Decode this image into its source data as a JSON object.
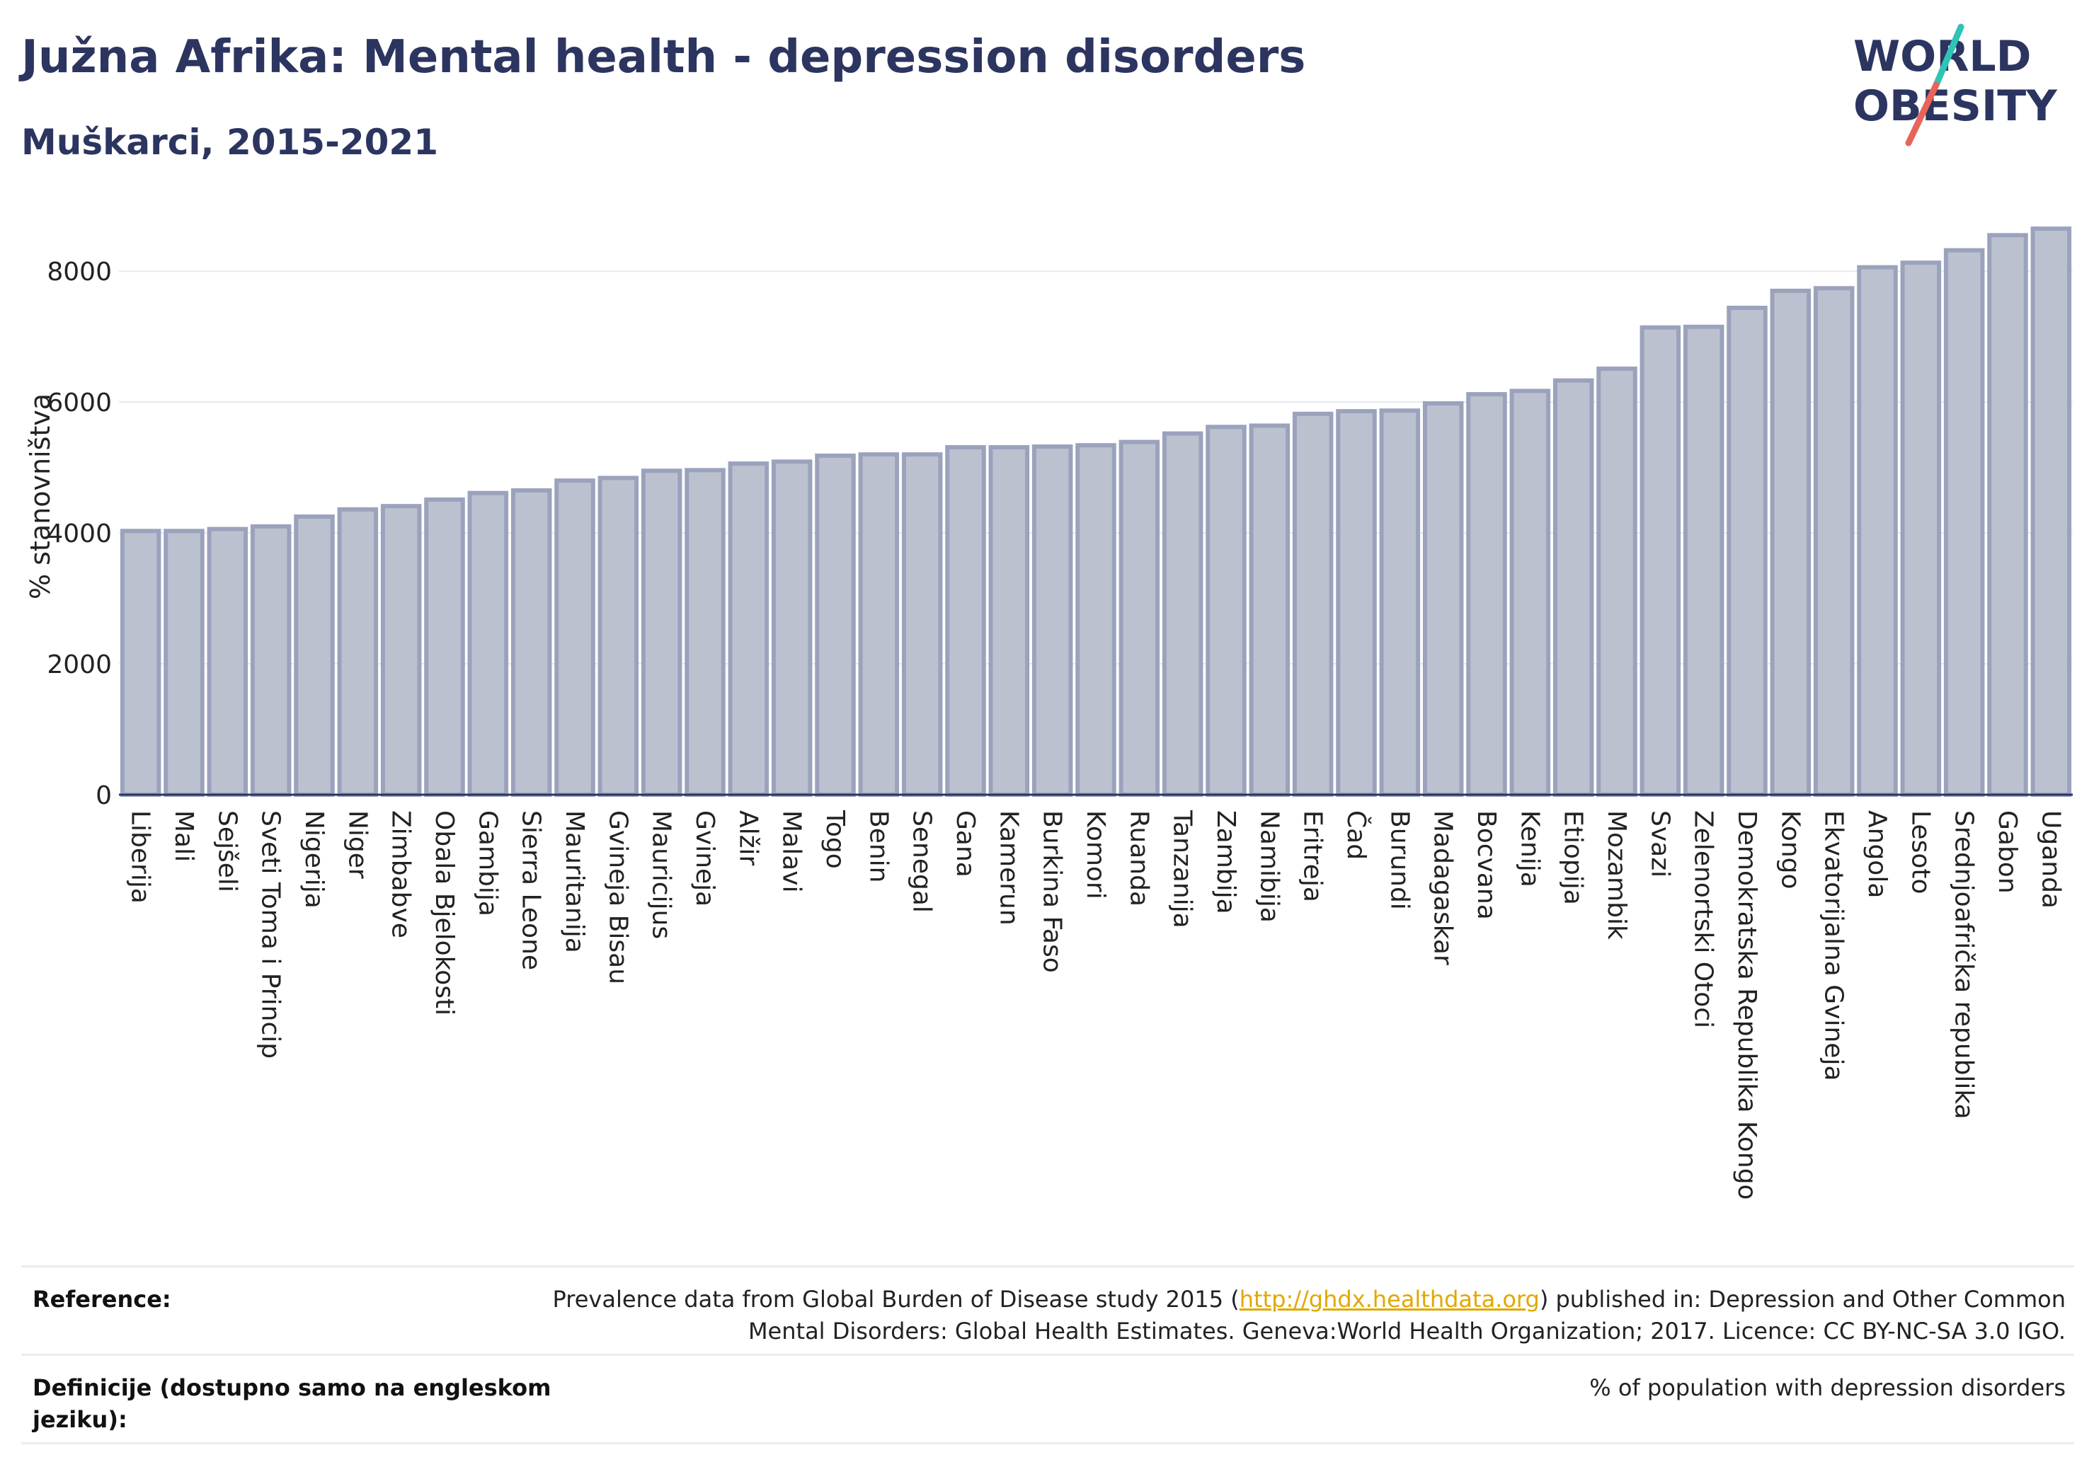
{
  "header": {
    "title": "Južna Afrika: Mental health - depression disorders",
    "subtitle": "Muškarci, 2015-2021"
  },
  "logo": {
    "line1": "WORLD",
    "line2": "OBESITY",
    "accent_colors": [
      "#2ec4b6",
      "#e8645a"
    ]
  },
  "chart_data": {
    "type": "bar",
    "ylabel": "% stanovništva",
    "xlabel": "",
    "ylim": [
      0,
      8900
    ],
    "yticks": [
      0,
      2000,
      4000,
      6000,
      8000
    ],
    "grid": true,
    "bar_color": "#bcc1d0",
    "bar_edge_color": "#9ba2bc",
    "categories": [
      "Liberija",
      "Mali",
      "Sejšeli",
      "Sveti Toma i Princip",
      "Nigerija",
      "Niger",
      "Zimbabve",
      "Obala Bjelokosti",
      "Gambija",
      "Sierra Leone",
      "Mauritanija",
      "Gvineja Bisau",
      "Mauricijus",
      "Gvineja",
      "Alžir",
      "Malavi",
      "Togo",
      "Benin",
      "Senegal",
      "Gana",
      "Kamerun",
      "Burkina Faso",
      "Komori",
      "Ruanda",
      "Tanzanija",
      "Zambija",
      "Namibija",
      "Eritreja",
      "Čad",
      "Burundi",
      "Madagaskar",
      "Bocvana",
      "Kenija",
      "Etiopija",
      "Mozambik",
      "Svazi",
      "Zelenortski Otoci",
      "Demokratska Republika Kongo",
      "Kongo",
      "Ekvatorijalna Gvineja",
      "Angola",
      "Lesoto",
      "Srednjoafrička republika",
      "Gabon",
      "Uganda"
    ],
    "values": [
      4030,
      4030,
      4060,
      4100,
      4250,
      4360,
      4410,
      4510,
      4610,
      4650,
      4800,
      4840,
      4950,
      4960,
      5060,
      5090,
      5180,
      5200,
      5200,
      5310,
      5310,
      5320,
      5340,
      5390,
      5520,
      5620,
      5640,
      5820,
      5860,
      5870,
      5980,
      6120,
      6170,
      6330,
      6510,
      7140,
      7150,
      7440,
      7700,
      7740,
      8060,
      8130,
      8320,
      8550,
      8650
    ]
  },
  "footer": {
    "reference_label": "Reference:",
    "reference_line1_before": "Prevalence data from Global Burden of Disease study 2015 (",
    "reference_link": "http://ghdx.healthdata.org",
    "reference_line1_after": ") published in: Depression and Other Common",
    "reference_line2": "Mental Disorders: Global Health Estimates. Geneva:World Health Organization; 2017. Licence: CC BY-NC-SA 3.0 IGO.",
    "definition_label_line1": "Definicije (dostupno samo na engleskom",
    "definition_label_line2": "jeziku):",
    "definition_text": "% of population with depression disorders"
  }
}
